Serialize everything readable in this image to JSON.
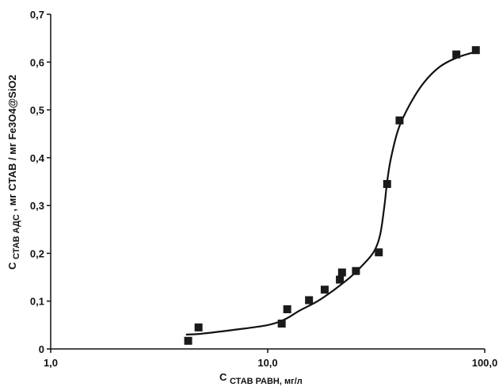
{
  "chart_data": {
    "type": "scatter",
    "x_scale": "log",
    "xlim": [
      1.0,
      100.0
    ],
    "ylim": [
      0,
      0.7
    ],
    "grid": false,
    "x_tick_labels": [
      "1,0",
      "10,0",
      "100,0"
    ],
    "y_tick_labels": [
      "0",
      "0,1",
      "0,2",
      "0,3",
      "0,4",
      "0,5",
      "0,6",
      "0,7"
    ],
    "xlabel": {
      "prefix": "С",
      "sub": "СТАВ РАВН, мг/л"
    },
    "ylabel": {
      "prefix": "С",
      "sub": "СТАВ АДС",
      "rest": ", мг СТАВ / мг Fe3O4@SiO2"
    },
    "series": [
      {
        "mark": "square",
        "points": [
          {
            "x": 4.3,
            "y": 0.017
          },
          {
            "x": 4.8,
            "y": 0.045
          },
          {
            "x": 11.6,
            "y": 0.053
          },
          {
            "x": 12.3,
            "y": 0.083
          },
          {
            "x": 15.5,
            "y": 0.102
          },
          {
            "x": 18.3,
            "y": 0.124
          },
          {
            "x": 21.5,
            "y": 0.145
          },
          {
            "x": 22.0,
            "y": 0.16
          },
          {
            "x": 25.5,
            "y": 0.163
          },
          {
            "x": 32.5,
            "y": 0.202
          },
          {
            "x": 35.5,
            "y": 0.345
          },
          {
            "x": 40.5,
            "y": 0.478
          },
          {
            "x": 74.0,
            "y": 0.616
          },
          {
            "x": 91.0,
            "y": 0.625
          }
        ]
      },
      {
        "mark": "line",
        "points": [
          {
            "x": 4.2,
            "y": 0.03
          },
          {
            "x": 5.0,
            "y": 0.032
          },
          {
            "x": 7.0,
            "y": 0.04
          },
          {
            "x": 10.0,
            "y": 0.05
          },
          {
            "x": 12.0,
            "y": 0.062
          },
          {
            "x": 14.0,
            "y": 0.08
          },
          {
            "x": 17.0,
            "y": 0.1
          },
          {
            "x": 20.0,
            "y": 0.122
          },
          {
            "x": 24.0,
            "y": 0.15
          },
          {
            "x": 28.0,
            "y": 0.18
          },
          {
            "x": 31.0,
            "y": 0.205
          },
          {
            "x": 33.0,
            "y": 0.24
          },
          {
            "x": 34.5,
            "y": 0.3
          },
          {
            "x": 35.5,
            "y": 0.35
          },
          {
            "x": 37.0,
            "y": 0.4
          },
          {
            "x": 40.0,
            "y": 0.46
          },
          {
            "x": 45.0,
            "y": 0.51
          },
          {
            "x": 52.0,
            "y": 0.555
          },
          {
            "x": 62.0,
            "y": 0.59
          },
          {
            "x": 75.0,
            "y": 0.61
          },
          {
            "x": 92.0,
            "y": 0.622
          }
        ]
      }
    ]
  }
}
